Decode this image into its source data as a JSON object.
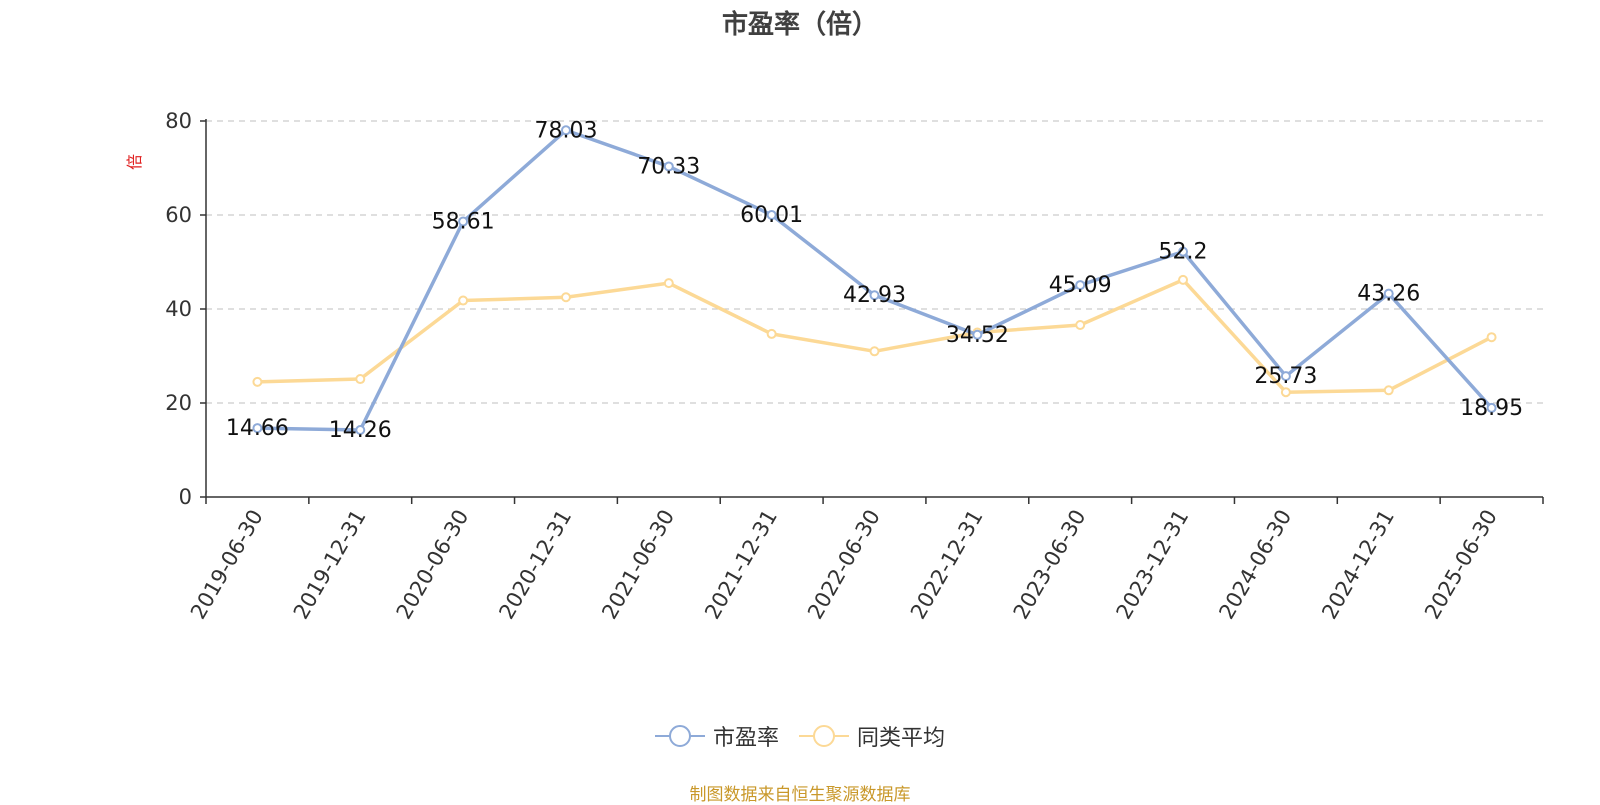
{
  "title": "市盈率（倍）",
  "source_note": "制图数据来自恒生聚源数据库",
  "chart_data": {
    "type": "line",
    "title": "市盈率（倍）",
    "ylabel": "倍",
    "ylim": [
      0,
      80
    ],
    "yticks": [
      0,
      20,
      40,
      60,
      80
    ],
    "grid": true,
    "legend_position": "bottom-center",
    "categories": [
      "2019-06-30",
      "2019-12-31",
      "2020-06-30",
      "2020-12-31",
      "2021-06-30",
      "2021-12-31",
      "2022-06-30",
      "2022-12-31",
      "2023-06-30",
      "2023-12-31",
      "2024-06-30",
      "2024-12-31",
      "2025-06-30"
    ],
    "series": [
      {
        "name": "市盈率",
        "color": "#8eaad8",
        "show_labels": true,
        "values": [
          14.66,
          14.26,
          58.61,
          78.03,
          70.33,
          60.01,
          42.93,
          34.52,
          45.09,
          52.2,
          25.73,
          43.26,
          18.95
        ]
      },
      {
        "name": "同类平均",
        "color": "#fcd996",
        "show_labels": false,
        "values": [
          24.5,
          25.1,
          41.8,
          42.5,
          45.5,
          34.7,
          31.0,
          35.0,
          36.6,
          46.2,
          22.3,
          22.7,
          34.0
        ]
      }
    ]
  }
}
